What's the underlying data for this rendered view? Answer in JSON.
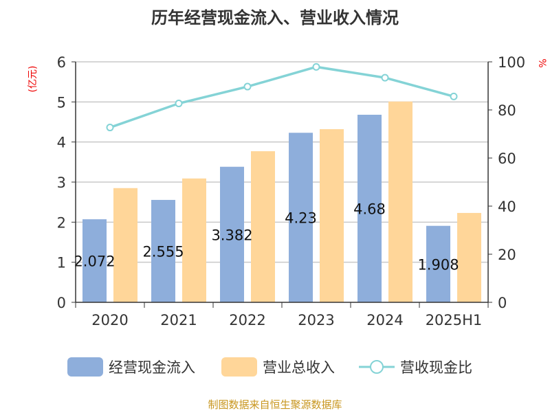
{
  "chart_data": {
    "type": "bar",
    "title": "历年经营现金流入、营业收入情况",
    "categories": [
      "2020",
      "2021",
      "2022",
      "2023",
      "2024",
      "2025H1"
    ],
    "ylabel": "(亿元)",
    "y2label": "%",
    "ylim": [
      0,
      6
    ],
    "y2lim": [
      0,
      100
    ],
    "yticks": [
      0,
      1,
      2,
      3,
      4,
      5,
      6
    ],
    "y2ticks": [
      0,
      20,
      40,
      60,
      80,
      100
    ],
    "grid": true,
    "legend_position": "bottom",
    "series": [
      {
        "name": "经营现金流入",
        "type": "bar",
        "axis": "left",
        "color": "#8eaedb",
        "values": [
          2.072,
          2.555,
          3.382,
          4.23,
          4.68,
          1.908
        ],
        "labels": [
          "2.072",
          "2.555",
          "3.382",
          "4.23",
          "4.68",
          "1.908"
        ]
      },
      {
        "name": "营业总收入",
        "type": "bar",
        "axis": "left",
        "color": "#ffd699",
        "values": [
          2.85,
          3.09,
          3.77,
          4.32,
          5.01,
          2.23
        ]
      },
      {
        "name": "营收现金比",
        "type": "line",
        "axis": "right",
        "color": "#84d3d6",
        "values": [
          72.7,
          82.7,
          89.7,
          97.9,
          93.4,
          85.6
        ]
      }
    ],
    "source": "制图数据来自恒生聚源数据库"
  }
}
